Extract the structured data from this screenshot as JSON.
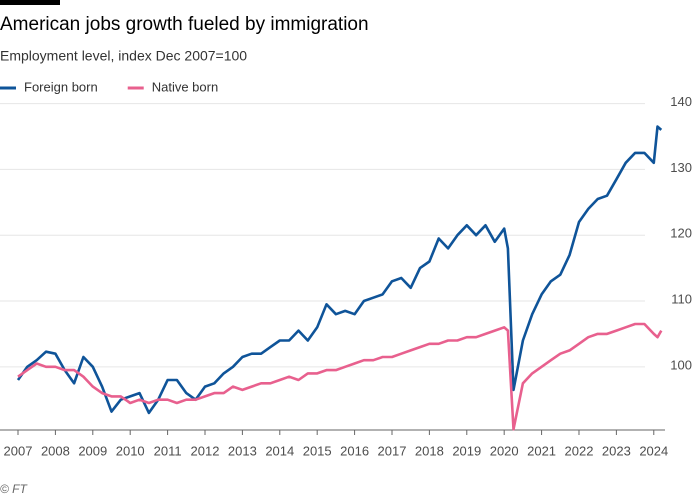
{
  "chart_data": {
    "type": "line",
    "title": "American jobs growth fueled by immigration",
    "subtitle": "Employment level, index Dec 2007=100",
    "source": "© FT",
    "x": [
      2007,
      2007.25,
      2007.5,
      2007.75,
      2008,
      2008.25,
      2008.5,
      2008.75,
      2009,
      2009.25,
      2009.5,
      2009.75,
      2010,
      2010.25,
      2010.5,
      2010.75,
      2011,
      2011.25,
      2011.5,
      2011.75,
      2012,
      2012.25,
      2012.5,
      2012.75,
      2013,
      2013.25,
      2013.5,
      2013.75,
      2014,
      2014.25,
      2014.5,
      2014.75,
      2015,
      2015.25,
      2015.5,
      2015.75,
      2016,
      2016.25,
      2016.5,
      2016.75,
      2017,
      2017.25,
      2017.5,
      2017.75,
      2018,
      2018.25,
      2018.5,
      2018.75,
      2019,
      2019.25,
      2019.5,
      2019.75,
      2020,
      2020.1,
      2020.25,
      2020.5,
      2020.75,
      2021,
      2021.25,
      2021.5,
      2021.75,
      2022,
      2022.25,
      2022.5,
      2022.75,
      2023,
      2023.25,
      2023.5,
      2023.75,
      2024,
      2024.1,
      2024.2
    ],
    "series": [
      {
        "name": "Foreign born",
        "color": "#0f5499",
        "values": [
          98,
          100,
          101,
          102.3,
          102,
          99.5,
          97.5,
          101.5,
          100,
          97,
          93.2,
          95,
          95.5,
          96,
          93,
          95,
          98,
          98,
          96,
          95,
          97,
          97.5,
          99,
          100,
          101.5,
          102,
          102,
          103,
          104,
          104,
          105.5,
          104,
          106,
          109.5,
          108,
          108.5,
          108,
          110,
          110.5,
          111,
          113,
          113.5,
          112,
          115,
          116,
          119.5,
          118,
          120,
          121.5,
          120,
          121.5,
          119,
          121,
          118,
          96.5,
          104,
          108,
          111,
          113,
          114,
          117,
          122,
          124,
          125.5,
          126,
          128.5,
          131,
          132.5,
          132.5,
          131,
          136.5,
          136
        ]
      },
      {
        "name": "Native born",
        "color": "#e8608e",
        "values": [
          98.5,
          99.5,
          100.5,
          100,
          100,
          99.5,
          99.5,
          98.5,
          97,
          96,
          95.5,
          95.5,
          94.5,
          95,
          94.5,
          95,
          95,
          94.5,
          95,
          95,
          95.5,
          96,
          96,
          97,
          96.5,
          97,
          97.5,
          97.5,
          98,
          98.5,
          98,
          99,
          99,
          99.5,
          99.5,
          100,
          100.5,
          101,
          101,
          101.5,
          101.5,
          102,
          102.5,
          103,
          103.5,
          103.5,
          104,
          104,
          104.5,
          104.5,
          105,
          105.5,
          106,
          105.5,
          90.5,
          97.5,
          99,
          100,
          101,
          102,
          102.5,
          103.5,
          104.5,
          105,
          105,
          105.5,
          106,
          106.5,
          106.5,
          105,
          104.5,
          105.5
        ]
      }
    ],
    "xlim": [
      2007,
      2024.3
    ],
    "xticks": [
      2007,
      2008,
      2009,
      2010,
      2011,
      2012,
      2013,
      2014,
      2015,
      2016,
      2017,
      2018,
      2019,
      2020,
      2021,
      2022,
      2023,
      2024
    ],
    "ylim": [
      90.4,
      141
    ],
    "yticks": [
      100,
      110,
      120,
      130,
      140
    ],
    "grid": true,
    "legend": "top-left"
  }
}
